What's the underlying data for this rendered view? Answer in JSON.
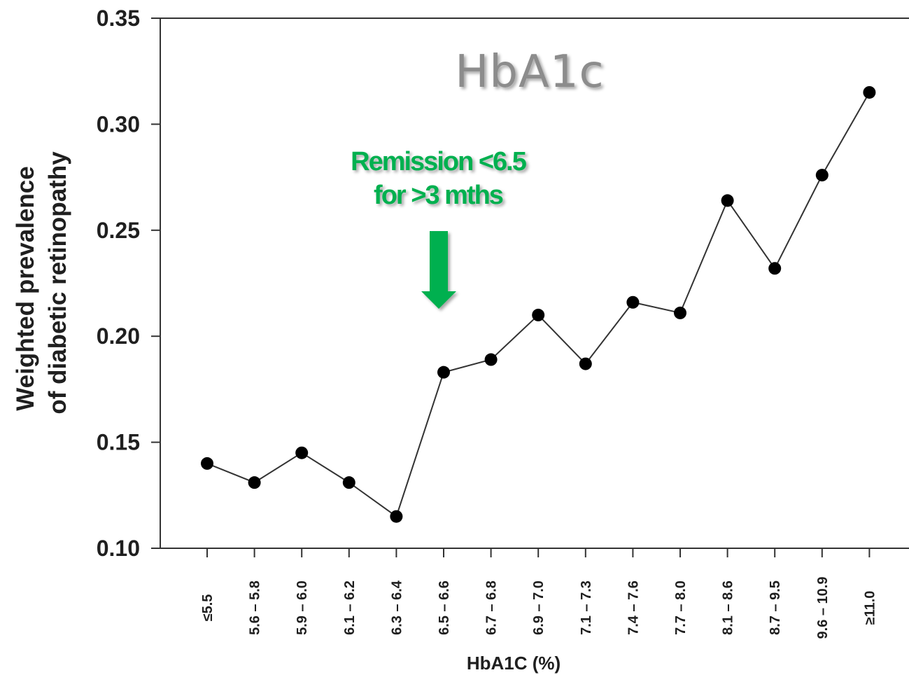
{
  "chart_data": {
    "type": "line",
    "title": "HbA1c",
    "xlabel": "HbA1C (%)",
    "ylabel_lines": [
      "Weighted prevalence",
      "of diabetic retinopathy"
    ],
    "categories": [
      "≤5.5",
      "5.6 – 5.8",
      "5.9 – 6.0",
      "6.1 – 6.2",
      "6.3 – 6.4",
      "6.5 – 6.6",
      "6.7 – 6.8",
      "6.9 – 7.0",
      "7.1 – 7.3",
      "7.4 – 7.6",
      "7.7 – 8.0",
      "8.1 – 8.6",
      "8.7 – 9.5",
      "9.6 – 10.9",
      "≥11.0"
    ],
    "values": [
      0.14,
      0.131,
      0.145,
      0.131,
      0.115,
      0.183,
      0.189,
      0.21,
      0.187,
      0.216,
      0.211,
      0.264,
      0.232,
      0.276,
      0.315
    ],
    "ylim": [
      0.1,
      0.35
    ],
    "yticks": [
      "0.10",
      "0.15",
      "0.20",
      "0.25",
      "0.30",
      "0.35"
    ],
    "grid": false,
    "annotation": {
      "lines": [
        "Remission <6.5",
        "for >3 mths"
      ],
      "color": "#00b050",
      "points_to_category": "6.5 – 6.6"
    }
  }
}
